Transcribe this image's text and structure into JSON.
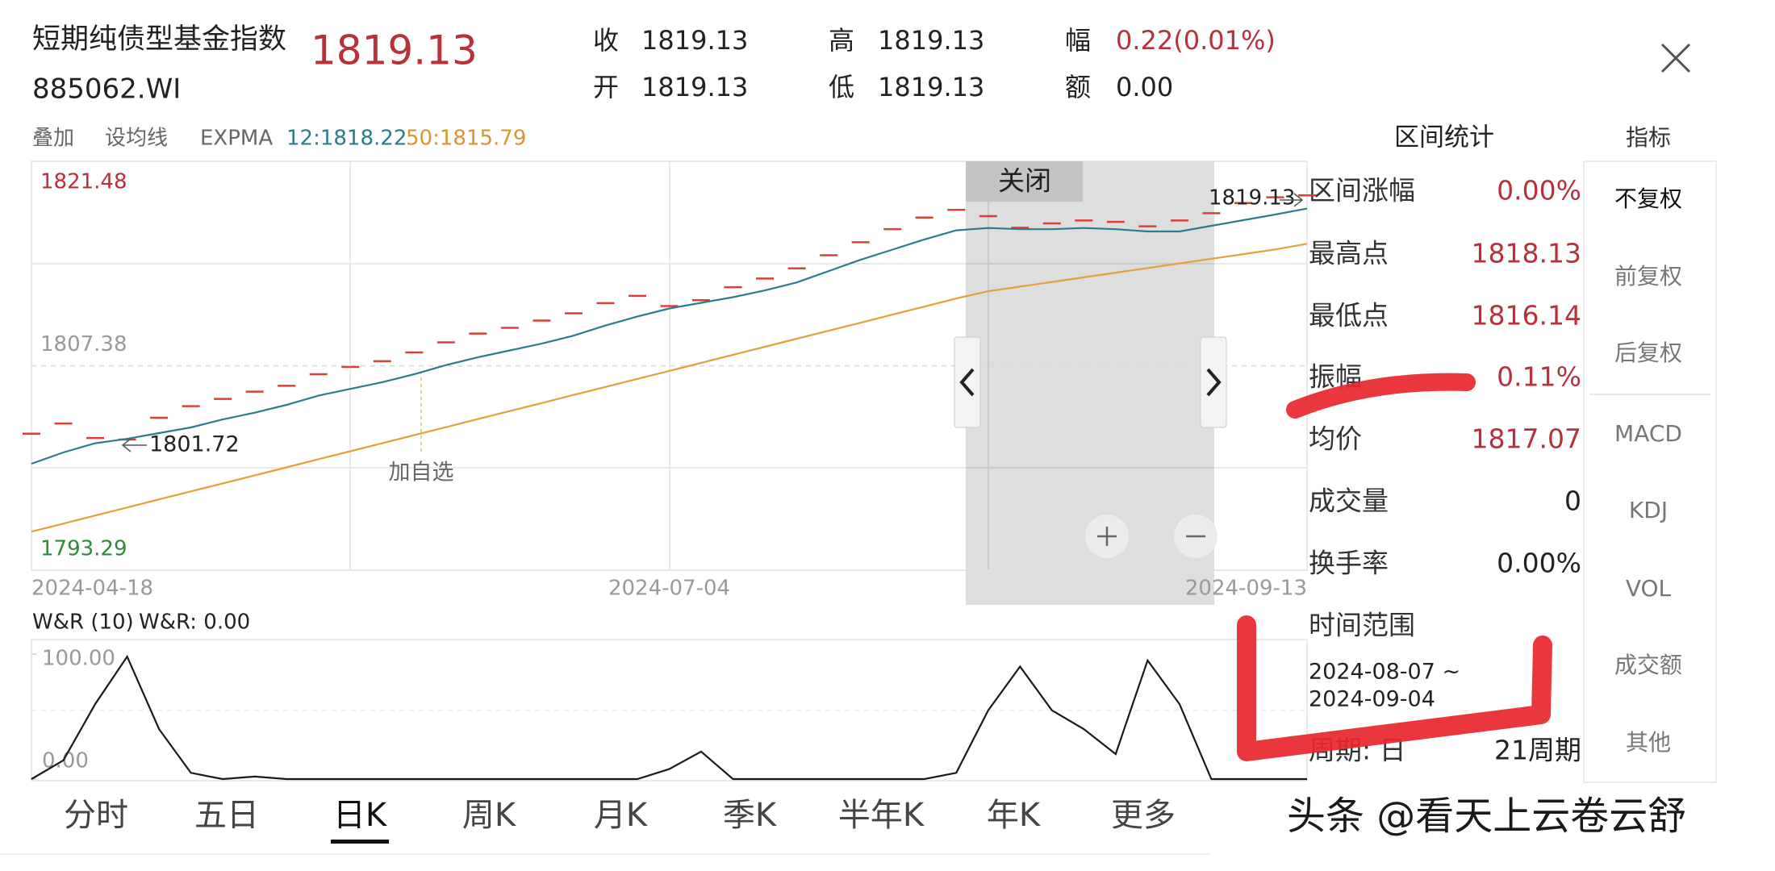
{
  "header": {
    "title": "短期纯债型基金指数",
    "price": "1819.13",
    "code": "885062.WI"
  },
  "quote": [
    {
      "label": "收",
      "value": "1819.13"
    },
    {
      "label": "开",
      "value": "1819.13"
    },
    {
      "label": "高",
      "value": "1819.13"
    },
    {
      "label": "低",
      "value": "1819.13"
    },
    {
      "label": "幅",
      "value": "0.22(0.01%)"
    },
    {
      "label": "额",
      "value": "0.00"
    }
  ],
  "indicator_bar": {
    "overlay": "叠加",
    "ma_setting": "设均线",
    "indicator": "EXPMA",
    "ema_short": "12:1818.22",
    "ema_long": "50:1815.79"
  },
  "chart_data": [
    {
      "type": "line",
      "categories": [
        "2024-04-18",
        null,
        null,
        null,
        null,
        null,
        null,
        null,
        null,
        null,
        null,
        null,
        null,
        null,
        null,
        null,
        null,
        null,
        null,
        null,
        "2024-07-04",
        null,
        null,
        null,
        null,
        null,
        null,
        null,
        null,
        null,
        null,
        null,
        null,
        null,
        null,
        null,
        null,
        null,
        null,
        null,
        "2024-09-13"
      ],
      "series": [
        {
          "color": "#d9403a",
          "style": "dash",
          "values": [
            1802.7,
            1803.4,
            1802.4,
            1802.3,
            1803.8,
            1804.6,
            1805.1,
            1805.6,
            1806.0,
            1806.8,
            1807.3,
            1807.7,
            1808.3,
            1809.0,
            1809.6,
            1810.0,
            1810.5,
            1811.0,
            1811.7,
            1812.2,
            1811.5,
            1811.9,
            1812.8,
            1813.4,
            1814.1,
            1815.0,
            1815.9,
            1816.8,
            1817.6,
            1818.13,
            1817.7,
            1816.9,
            1817.2,
            1817.4,
            1817.3,
            1817.0,
            1817.4,
            1817.9,
            1818.6,
            1819.0,
            1819.13
          ]
        },
        {
          "color": "#2a7c8e",
          "values": [
            1800.63,
            1801.41,
            1802.04,
            1802.35,
            1802.74,
            1803.13,
            1803.68,
            1804.15,
            1804.69,
            1805.32,
            1805.79,
            1806.25,
            1806.8,
            1807.43,
            1807.97,
            1808.44,
            1808.91,
            1809.46,
            1810.16,
            1810.78,
            1811.33,
            1811.72,
            1812.11,
            1812.58,
            1813.13,
            1813.91,
            1814.69,
            1815.39,
            1816.09,
            1816.72,
            1816.88,
            1816.8,
            1816.8,
            1816.88,
            1816.8,
            1816.64,
            1816.64,
            1817.03,
            1817.42,
            1817.81,
            1818.22
          ]
        },
        {
          "color": "#e6a03a",
          "values": [
            1795.95,
            1796.5,
            1797.06,
            1797.61,
            1798.17,
            1798.72,
            1799.27,
            1799.83,
            1800.38,
            1800.94,
            1801.49,
            1802.04,
            1802.6,
            1803.15,
            1803.71,
            1804.26,
            1804.81,
            1805.37,
            1805.92,
            1806.48,
            1807.03,
            1807.58,
            1808.14,
            1808.69,
            1809.25,
            1809.8,
            1810.35,
            1810.91,
            1811.46,
            1812.02,
            1812.52,
            1812.84,
            1813.16,
            1813.48,
            1813.8,
            1814.12,
            1814.44,
            1814.76,
            1815.08,
            1815.4,
            1815.79
          ]
        }
      ],
      "ylim": [
        1793.29,
        1821.48
      ],
      "yticks": [
        1793.29,
        1807.38,
        1821.48
      ],
      "low_label": "1801.72",
      "high_label": "1819.13",
      "watchlist_label": "加自选"
    },
    {
      "type": "line",
      "title": "W&R (10)",
      "subtitle": "W&R: 0.00",
      "color": "#1a1a1a",
      "values": [
        0,
        15,
        60,
        98,
        40,
        5,
        0,
        2,
        0,
        0,
        0,
        0,
        0,
        0,
        0,
        0,
        0,
        0,
        0,
        0,
        8,
        22,
        0,
        0,
        0,
        0,
        0,
        0,
        0,
        5,
        55,
        90,
        55,
        40,
        20,
        95,
        60,
        0,
        0,
        0,
        0
      ],
      "ylim": [
        0,
        100
      ],
      "yticks": [
        {
          "value": 0,
          "label": "0.00"
        },
        {
          "value": 100,
          "label": "100.00"
        }
      ]
    }
  ],
  "close_selection": "关闭",
  "stats": {
    "title": "区间统计",
    "rows": [
      {
        "label": "区间涨幅",
        "value": "0.00%"
      },
      {
        "label": "最高点",
        "value": "1818.13"
      },
      {
        "label": "最低点",
        "value": "1816.14"
      },
      {
        "label": "振幅",
        "value": "0.11%"
      },
      {
        "label": "均价",
        "value": "1817.07"
      },
      {
        "label": "成交量",
        "value": "0"
      },
      {
        "label": "换手率",
        "value": "0.00%"
      }
    ],
    "range_label": "时间范围",
    "range": [
      "2024-08-07 ~",
      "2024-09-04"
    ],
    "period_label": "周期:  日",
    "period_value": "21周期"
  },
  "menu": {
    "title": "指标",
    "items": [
      "不复权",
      "前复权",
      "后复权",
      "MACD",
      "KDJ",
      "VOL",
      "成交额",
      "其他"
    ]
  },
  "tabs": [
    "分时",
    "五日",
    "日K",
    "周K",
    "月K",
    "季K",
    "半年K",
    "年K",
    "更多"
  ],
  "watermark": "头条 @看天上云卷云舒"
}
